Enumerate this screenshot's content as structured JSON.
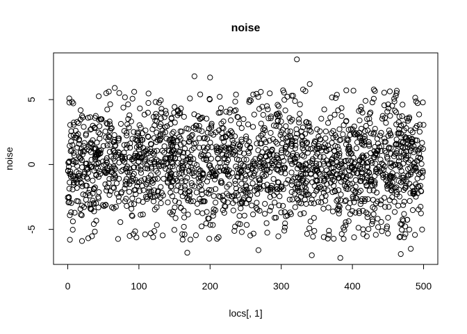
{
  "chart_data": {
    "type": "scatter",
    "title": "noise",
    "xlabel": "locs[, 1]",
    "ylabel": "noise",
    "xlim": [
      -20,
      520
    ],
    "ylim": [
      -7.7,
      8.6
    ],
    "x_ticks": [
      0,
      100,
      200,
      300,
      400,
      500
    ],
    "x_tick_labels": [
      "0",
      "100",
      "200",
      "300",
      "400",
      "500"
    ],
    "y_ticks": [
      -5,
      0,
      5
    ],
    "y_tick_labels": [
      "-5",
      "0",
      "5"
    ],
    "grid": false,
    "point_style": "open-circle",
    "point_color": "#000000",
    "n_points_approx": 2000,
    "x_range": [
      0,
      500
    ],
    "noise_sd_approx": 2.4,
    "highlighted_points": [
      {
        "x": 322,
        "y": 8.1
      },
      {
        "x": 340,
        "y": 6.2
      },
      {
        "x": 178,
        "y": 6.8
      },
      {
        "x": 200,
        "y": 6.7
      },
      {
        "x": 66,
        "y": 5.9
      },
      {
        "x": 462,
        "y": 5.5
      },
      {
        "x": 383,
        "y": -7.2
      },
      {
        "x": 343,
        "y": -7.0
      },
      {
        "x": 468,
        "y": -6.9
      },
      {
        "x": 168,
        "y": -6.8
      },
      {
        "x": 268,
        "y": -6.6
      },
      {
        "x": 482,
        "y": -6.5
      },
      {
        "x": 3,
        "y": -5.8
      },
      {
        "x": 20,
        "y": -5.9
      },
      {
        "x": 87,
        "y": -5.5
      },
      {
        "x": 120,
        "y": -5.6
      },
      {
        "x": 212,
        "y": -5.6
      },
      {
        "x": 415,
        "y": -5.0
      }
    ]
  }
}
